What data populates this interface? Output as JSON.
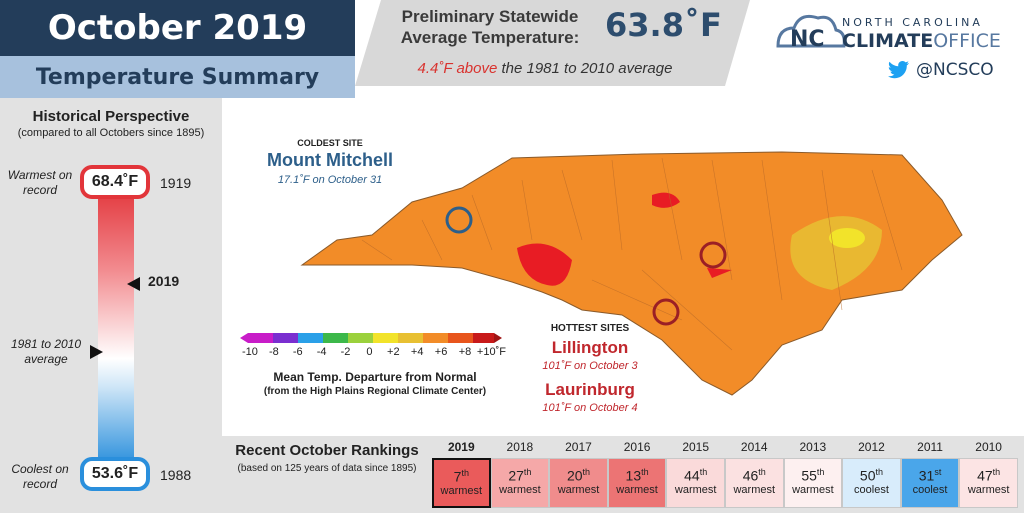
{
  "header": {
    "title": "October 2019",
    "subtitle": "Temperature Summary",
    "stat_label": "Preliminary Statewide Average Temperature:",
    "stat_value": "63.8˚F",
    "stat_diff_hot": "4.4˚F above",
    "stat_diff_rest": " the 1981 to 2010 average"
  },
  "brand": {
    "org_line1": "NORTH CAROLINA",
    "org_line2a": "CLIMATE",
    "org_line2b": "OFFICE",
    "twitter": "@NCSCO"
  },
  "history": {
    "title": "Historical Perspective",
    "subtitle": "(compared to all Octobers since 1895)",
    "warmest_label": "Warmest on record",
    "warmest_value": "68.4˚F",
    "warmest_year": "1919",
    "current_year": "2019",
    "avg_label": "1981 to 2010 average",
    "coolest_label": "Coolest on record",
    "coolest_value": "53.6˚F",
    "coolest_year": "1988"
  },
  "map": {
    "coldest_header": "COLDEST SITE",
    "coldest_name": "Mount Mitchell",
    "coldest_info": "17.1˚F on October 31",
    "hottest_header": "HOTTEST SITES",
    "hot1_name": "Lillington",
    "hot1_info": "101˚F on October 3",
    "hot2_name": "Laurinburg",
    "hot2_info": "101˚F on October 4",
    "legend_ticks": [
      "-10",
      "-8",
      "-6",
      "-4",
      "-2",
      "0",
      "+2",
      "+4",
      "+6",
      "+8",
      "+10˚F"
    ],
    "legend_title": "Mean Temp. Departure from Normal",
    "legend_source": "(from the High Plains Regional Climate Center)",
    "colors": {
      "warm": "#f28c28",
      "hot": "#e81c24",
      "mild": "#e8c032",
      "cool": "#2d5f8a"
    }
  },
  "rankings": {
    "title": "Recent October Rankings",
    "subtitle": "(based on 125 years of data since 1895)",
    "items": [
      {
        "year": "2019",
        "rank": "7",
        "suffix": "th",
        "label": "warmest",
        "color": "#ea5b5b"
      },
      {
        "year": "2018",
        "rank": "27",
        "suffix": "th",
        "label": "warmest",
        "color": "#f5a8a8"
      },
      {
        "year": "2017",
        "rank": "20",
        "suffix": "th",
        "label": "warmest",
        "color": "#f08c8c"
      },
      {
        "year": "2016",
        "rank": "13",
        "suffix": "th",
        "label": "warmest",
        "color": "#ec7474"
      },
      {
        "year": "2015",
        "rank": "44",
        "suffix": "th",
        "label": "warmest",
        "color": "#fadada"
      },
      {
        "year": "2014",
        "rank": "46",
        "suffix": "th",
        "label": "warmest",
        "color": "#fbe1e1"
      },
      {
        "year": "2013",
        "rank": "55",
        "suffix": "th",
        "label": "warmest",
        "color": "#fdf0f0"
      },
      {
        "year": "2012",
        "rank": "50",
        "suffix": "th",
        "label": "coolest",
        "color": "#d8ecfb"
      },
      {
        "year": "2011",
        "rank": "31",
        "suffix": "st",
        "label": "coolest",
        "color": "#4aa6ea"
      },
      {
        "year": "2010",
        "rank": "47",
        "suffix": "th",
        "label": "warmest",
        "color": "#fce4e4"
      }
    ]
  }
}
